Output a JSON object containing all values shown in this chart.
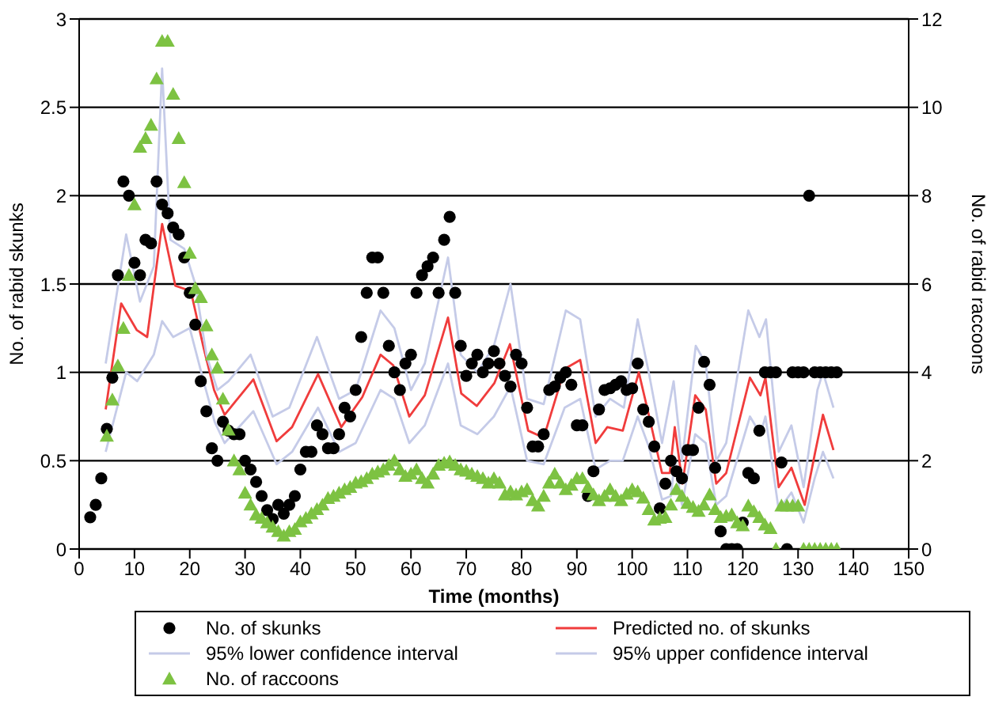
{
  "chart_data": {
    "type": "scatter",
    "xlabel": "Time (months)",
    "ylabel": "No. of rabid skunks",
    "y2label": "No. of rabid raccoons",
    "xlim": [
      0,
      150
    ],
    "xticks": [
      0,
      10,
      20,
      30,
      40,
      50,
      60,
      70,
      80,
      90,
      100,
      110,
      120,
      130,
      140,
      150
    ],
    "ylim": [
      0,
      3
    ],
    "yticks": [
      0,
      0.5,
      1,
      1.5,
      2,
      2.5,
      3
    ],
    "y2lim": [
      0,
      12
    ],
    "y2ticks": [
      0,
      2,
      4,
      6,
      8,
      10,
      12
    ],
    "grid": "y",
    "legend": "bottom",
    "series": [
      {
        "name": "No. of skunks",
        "marker": "circle",
        "color": "#000000",
        "x": [
          2,
          3,
          4,
          5,
          6,
          7,
          8,
          9,
          10,
          11,
          12,
          13,
          14,
          15,
          16,
          17,
          18,
          19,
          20,
          21,
          22,
          23,
          24,
          25,
          26,
          27,
          28,
          29,
          30,
          31,
          32,
          33,
          34,
          35,
          36,
          37,
          38,
          39,
          40,
          41,
          42,
          43,
          44,
          45,
          46,
          47,
          48,
          49,
          50,
          51,
          52,
          53,
          54,
          55,
          56,
          57,
          58,
          59,
          60,
          61,
          62,
          63,
          64,
          65,
          66,
          67,
          68,
          69,
          70,
          71,
          72,
          73,
          74,
          75,
          76,
          77,
          78,
          79,
          80,
          81,
          82,
          83,
          84,
          85,
          86,
          87,
          88,
          89,
          90,
          91,
          92,
          93,
          94,
          95,
          96,
          97,
          98,
          99,
          100,
          101,
          102,
          103,
          104,
          105,
          106,
          107,
          108,
          109,
          110,
          111,
          112,
          113,
          114,
          115,
          116,
          117,
          118,
          119,
          120,
          121,
          122,
          123,
          124,
          125,
          126,
          127,
          128,
          129,
          130,
          131,
          132,
          133,
          134,
          135,
          136,
          137
        ],
        "values": [
          0.18,
          0.25,
          0.4,
          0.68,
          0.97,
          1.55,
          2.08,
          2.0,
          1.62,
          1.55,
          1.75,
          1.73,
          2.08,
          1.95,
          1.9,
          1.82,
          1.78,
          1.65,
          1.45,
          1.27,
          0.95,
          0.78,
          0.57,
          0.5,
          0.72,
          0.67,
          0.65,
          0.65,
          0.5,
          0.45,
          0.38,
          0.3,
          0.22,
          0.17,
          0.25,
          0.2,
          0.25,
          0.3,
          0.45,
          0.55,
          0.55,
          0.7,
          0.65,
          0.57,
          0.57,
          0.65,
          0.8,
          0.75,
          0.9,
          1.2,
          1.45,
          1.65,
          1.65,
          1.45,
          1.15,
          1.0,
          0.9,
          1.05,
          1.1,
          1.45,
          1.55,
          1.6,
          1.65,
          1.45,
          1.75,
          1.88,
          1.45,
          1.15,
          0.98,
          1.05,
          1.1,
          1.0,
          1.05,
          1.12,
          1.05,
          0.98,
          0.92,
          1.1,
          1.05,
          0.8,
          0.58,
          0.58,
          0.65,
          0.9,
          0.92,
          0.97,
          1.0,
          0.93,
          0.7,
          0.7,
          0.3,
          0.44,
          0.79,
          0.9,
          0.91,
          0.93,
          0.95,
          0.9,
          0.91,
          1.05,
          0.79,
          0.72,
          0.58,
          0.23,
          0.37,
          0.5,
          0.44,
          0.4,
          0.56,
          0.56,
          0.8,
          1.06,
          0.93,
          0.46,
          0.1,
          0,
          0,
          0,
          0.15,
          0.43,
          0.4,
          0.67,
          1,
          1,
          1,
          0.49,
          0,
          1,
          1,
          1,
          2,
          1,
          1,
          1,
          1,
          1
        ]
      },
      {
        "name": "Predicted no. of skunks",
        "type": "line",
        "marker": "none",
        "color": "#f03c3c",
        "x": [
          4.8,
          7.6,
          10.4,
          12.3,
          15,
          17.4,
          20.2,
          22.5,
          24.4,
          26.3,
          31.5,
          35.7,
          38.5,
          43.2,
          47.4,
          51.2,
          54.5,
          56.8,
          59.7,
          62.5,
          66.7,
          69.1,
          71.9,
          75.1,
          77.9,
          81.2,
          84,
          87.8,
          90.6,
          93.4,
          95.5,
          98.3,
          101.2,
          103,
          105.4,
          106.8,
          107.7,
          109.1,
          111.4,
          113.3,
          115.2,
          117,
          121.3,
          123.2,
          124.1,
          126.5,
          128.8,
          131.2,
          133.1,
          134.5,
          136.4
        ],
        "values": [
          0.79,
          1.39,
          1.24,
          1.2,
          1.84,
          1.49,
          1.46,
          1.14,
          0.9,
          0.76,
          0.96,
          0.61,
          0.69,
          0.99,
          0.69,
          0.86,
          1.1,
          1.04,
          0.75,
          0.87,
          1.31,
          0.88,
          0.81,
          0.94,
          1.16,
          0.67,
          0.63,
          1.02,
          1.07,
          0.6,
          0.69,
          0.67,
          1.0,
          0.76,
          0.43,
          0.43,
          0.69,
          0.37,
          0.87,
          0.79,
          0.37,
          0.43,
          0.97,
          0.87,
          0.97,
          0.35,
          0.46,
          0.25,
          0.55,
          0.76,
          0.56
        ]
      },
      {
        "name": "95% lower confidence interval",
        "type": "line",
        "marker": "none",
        "color": "#c5cbe8",
        "x": [
          4.8,
          8.5,
          10.5,
          13.5,
          15,
          17,
          20,
          22.5,
          24.5,
          26.3,
          31.5,
          35.7,
          38.5,
          43.2,
          47,
          50,
          54.5,
          57,
          59.7,
          62.5,
          66.7,
          69,
          72,
          75,
          78,
          81,
          84,
          87.8,
          90.6,
          93.4,
          96,
          98.3,
          101,
          103,
          105.4,
          107,
          107.7,
          109,
          111.4,
          113.3,
          115.2,
          117,
          121.3,
          123.2,
          124.1,
          126.5,
          128.8,
          131,
          133,
          134.5,
          136.4
        ],
        "values": [
          0.55,
          1.0,
          0.95,
          1.1,
          1.29,
          1.2,
          1.25,
          0.95,
          0.72,
          0.6,
          0.78,
          0.48,
          0.55,
          0.8,
          0.55,
          0.6,
          0.9,
          0.85,
          0.6,
          0.7,
          1.05,
          0.7,
          0.65,
          0.75,
          0.92,
          0.5,
          0.48,
          0.8,
          0.85,
          0.45,
          0.5,
          0.5,
          0.75,
          0.58,
          0.28,
          0.3,
          0.5,
          0.25,
          0.65,
          0.6,
          0.25,
          0.3,
          0.75,
          0.65,
          0.75,
          0.22,
          0.32,
          0.15,
          0.4,
          0.55,
          0.4
        ]
      },
      {
        "name": "95% upper confidence interval",
        "type": "line",
        "marker": "none",
        "color": "#c5cbe8",
        "x": [
          4.8,
          8.5,
          11,
          13.5,
          15,
          16.5,
          19,
          21,
          23,
          25,
          27,
          31,
          35,
          38,
          43,
          47,
          50,
          54.5,
          57,
          60,
          62.5,
          66.7,
          69,
          72,
          75,
          78,
          81,
          84,
          88,
          90.6,
          93.4,
          96,
          98.5,
          101,
          103,
          105.4,
          107.5,
          109,
          111.5,
          113.3,
          115.2,
          117,
          121,
          123,
          124.2,
          126.5,
          128.8,
          131,
          133.5,
          134.5,
          136.4
        ],
        "values": [
          1.05,
          1.78,
          1.4,
          1.6,
          2.72,
          1.75,
          1.7,
          1.5,
          1.1,
          0.9,
          0.95,
          1.1,
          0.75,
          0.8,
          1.2,
          0.85,
          0.9,
          1.35,
          1.25,
          0.9,
          1.05,
          1.65,
          1.1,
          1.0,
          1.15,
          1.5,
          0.85,
          0.82,
          1.35,
          1.3,
          0.75,
          0.85,
          0.8,
          1.3,
          1.0,
          0.6,
          0.95,
          0.5,
          1.15,
          1.05,
          0.5,
          0.6,
          1.35,
          1.2,
          1.3,
          0.55,
          0.7,
          0.35,
          0.9,
          1.0,
          0.8
        ]
      },
      {
        "name": "No. of raccoons",
        "marker": "triangle",
        "axis": "y2",
        "color": "#7dc242",
        "x": [
          5,
          6,
          7,
          8,
          9,
          10,
          11,
          12,
          13,
          14,
          15,
          16,
          17,
          18,
          19,
          20,
          21,
          22,
          23,
          24,
          25,
          26,
          27,
          28,
          29,
          30,
          31,
          32,
          33,
          34,
          35,
          36,
          37,
          38,
          39,
          40,
          41,
          42,
          43,
          44,
          45,
          46,
          47,
          48,
          49,
          50,
          51,
          52,
          53,
          54,
          55,
          56,
          57,
          58,
          59,
          60,
          61,
          62,
          63,
          64,
          65,
          66,
          67,
          68,
          69,
          70,
          71,
          72,
          73,
          74,
          75,
          76,
          77,
          78,
          79,
          80,
          81,
          82,
          83,
          84,
          85,
          86,
          87,
          88,
          89,
          90,
          91,
          92,
          93,
          94,
          95,
          96,
          97,
          98,
          99,
          100,
          101,
          102,
          103,
          104,
          105,
          106,
          107,
          108,
          109,
          110,
          111,
          112,
          113,
          114,
          115,
          116,
          117,
          118,
          119,
          120,
          121,
          122,
          123,
          124,
          125,
          126,
          127,
          128,
          129,
          130,
          131,
          132,
          133,
          134,
          135,
          136,
          137
        ],
        "values": [
          2.56,
          3.38,
          4.15,
          5.0,
          6.2,
          7.8,
          9.1,
          9.3,
          9.6,
          10.65,
          11.5,
          11.5,
          10.3,
          9.3,
          8.3,
          6.7,
          5.9,
          5.7,
          5.06,
          4.4,
          4.1,
          3.4,
          2.7,
          2.0,
          1.8,
          1.27,
          1.0,
          0.78,
          0.7,
          0.6,
          0.5,
          0.4,
          0.3,
          0.4,
          0.45,
          0.62,
          0.7,
          0.8,
          0.9,
          1.0,
          1.15,
          1.2,
          1.27,
          1.35,
          1.4,
          1.5,
          1.53,
          1.6,
          1.7,
          1.75,
          1.8,
          1.9,
          2.0,
          1.8,
          1.65,
          1.7,
          1.8,
          1.6,
          1.5,
          1.7,
          1.9,
          1.95,
          1.98,
          1.9,
          1.8,
          1.77,
          1.7,
          1.65,
          1.6,
          1.5,
          1.6,
          1.5,
          1.23,
          1.3,
          1.23,
          1.3,
          1.35,
          1.1,
          0.98,
          1.2,
          1.5,
          1.7,
          1.5,
          1.35,
          1.45,
          1.6,
          1.6,
          1.4,
          1.23,
          1.1,
          1.2,
          1.35,
          1.2,
          1.1,
          1.25,
          1.35,
          1.3,
          1.16,
          0.9,
          0.66,
          0.7,
          0.72,
          1.0,
          1.35,
          1.2,
          1.04,
          0.95,
          0.86,
          1.0,
          1.23,
          0.9,
          0.72,
          0.75,
          0.78,
          0.6,
          0.53,
          0.98,
          0.85,
          0.72,
          0.55,
          0.47,
          0,
          0.98,
          0.98,
          0.98,
          0.98,
          0,
          0,
          0,
          0,
          0,
          0,
          0
        ]
      }
    ]
  }
}
